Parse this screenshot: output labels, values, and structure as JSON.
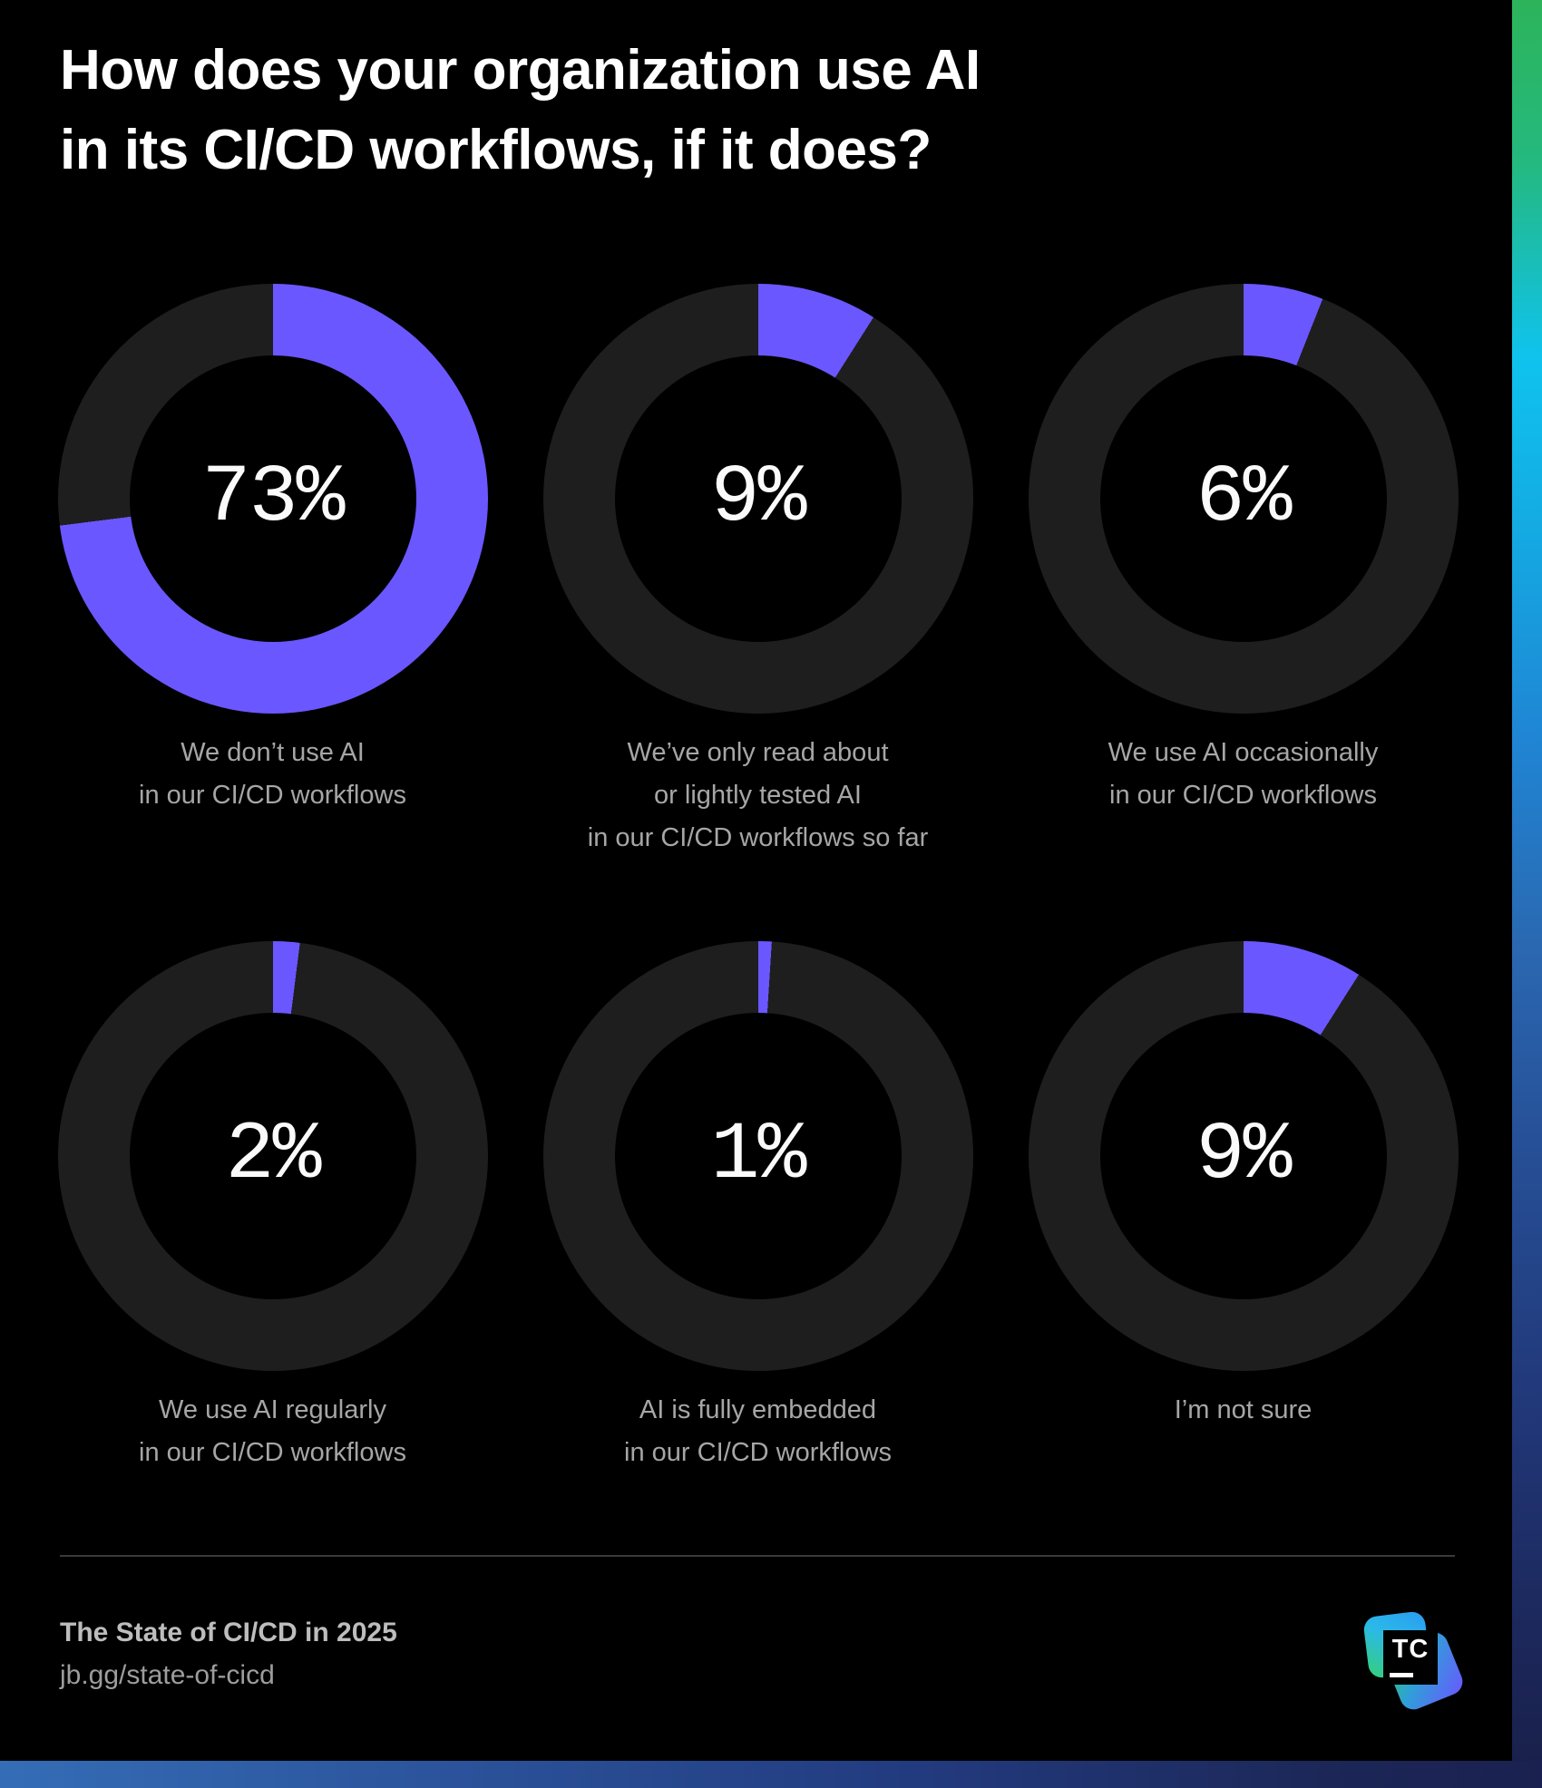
{
  "header": {
    "title_lines": [
      "How does your organization use AI",
      "in its CI/CD workflows, if it does?"
    ]
  },
  "chart_data": {
    "type": "pie",
    "variant": "donut-grid",
    "title": "How does your organization use AI in its CI/CD workflows, if it does?",
    "units": "%",
    "accent_color": "#6B57FF",
    "track_color": "#1E1E1E",
    "number_color": "#FAFAFA",
    "label_color": "#A6A6A6",
    "series": [
      {
        "value": 73,
        "display": "73%",
        "label_lines": [
          "We don’t use AI",
          "in our CI/CD workflows"
        ]
      },
      {
        "value": 9,
        "display": "9%",
        "label_lines": [
          "We’ve only read about",
          "or lightly tested AI",
          "in our CI/CD workflows so far"
        ]
      },
      {
        "value": 6,
        "display": "6%",
        "label_lines": [
          "We use AI occasionally",
          "in our CI/CD workflows"
        ]
      },
      {
        "value": 2,
        "display": "2%",
        "label_lines": [
          "We use AI regularly",
          "in our CI/CD workflows"
        ]
      },
      {
        "value": 1,
        "display": "1%",
        "label_lines": [
          "AI is fully embedded",
          "in our CI/CD workflows"
        ]
      },
      {
        "value": 9,
        "display": "9%",
        "label_lines": [
          "I’m not sure"
        ]
      }
    ]
  },
  "footer": {
    "report_title": "The State of CI/CD in 2025",
    "link": "jb.gg/state-of-cicd",
    "logo": {
      "name": "teamcity-logo",
      "monogram": "TC"
    }
  },
  "theme": {
    "background": "#000000",
    "divider_color": "#3A3A3A",
    "edge_gradient": [
      "#2DB45A",
      "#0FC3EE",
      "#1F86D5",
      "#264E95",
      "#191F48"
    ],
    "bottom_gradient": [
      "#346DB6",
      "#1A2150"
    ]
  }
}
